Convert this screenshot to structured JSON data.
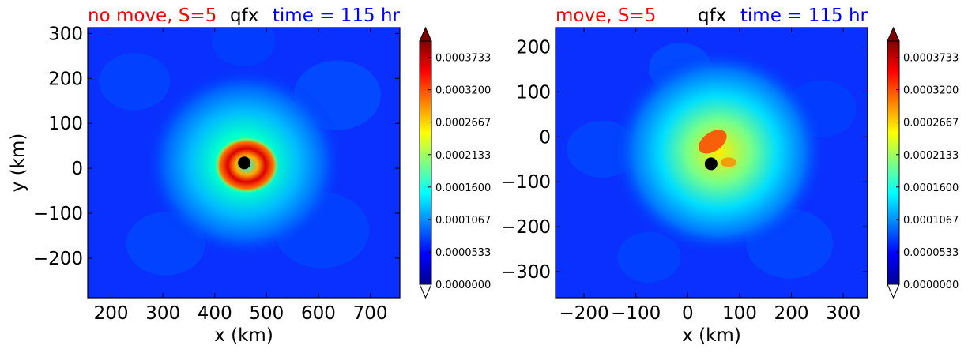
{
  "chart_data": [
    {
      "type": "heatmap",
      "title_left": "no move, S=5",
      "title_center": "qfx",
      "title_right": "time = 115 hr",
      "title_colors": {
        "left": "#ff0000",
        "center": "#000000",
        "right": "#0000ff"
      },
      "xlabel": "x (km)",
      "ylabel": "y (km)",
      "xlim": [
        155,
        757
      ],
      "ylim": [
        -288,
        313
      ],
      "xticks": [
        200,
        300,
        400,
        500,
        600,
        700
      ],
      "yticks": [
        300,
        200,
        100,
        0,
        -100,
        -200
      ],
      "xtick_labels": [
        "200",
        "300",
        "400",
        "500",
        "600",
        "700"
      ],
      "ytick_labels": [
        "300",
        "200",
        "100",
        "0",
        "−100",
        "−200"
      ],
      "center_marker": {
        "x": 457,
        "y": 12
      },
      "colorbar": {
        "min": 0.0,
        "max": 0.0004,
        "extend": "both",
        "ticks": [
          0.0,
          5.33e-05,
          0.0001067,
          0.00016,
          0.0002133,
          0.0002667,
          0.00032,
          0.0003733
        ],
        "tick_labels": [
          "0.0000000",
          "0.0000533",
          "0.0001067",
          "0.0001600",
          "0.0002133",
          "0.0002667",
          "0.0003200",
          "0.0003733"
        ],
        "colormap": "jet"
      }
    },
    {
      "type": "heatmap",
      "title_left": "move, S=5",
      "title_center": "qfx",
      "title_right": "time = 115 hr",
      "title_colors": {
        "left": "#ff0000",
        "center": "#000000",
        "right": "#0000ff"
      },
      "xlabel": "x (km)",
      "ylabel": "",
      "xlim": [
        -255,
        347
      ],
      "ylim": [
        -358,
        243
      ],
      "xticks": [
        -200,
        -100,
        0,
        100,
        200,
        300
      ],
      "yticks": [
        200,
        100,
        0,
        -100,
        -200,
        -300
      ],
      "xtick_labels": [
        "−200",
        "−100",
        "0",
        "100",
        "200",
        "300"
      ],
      "ytick_labels": [
        "200",
        "100",
        "0",
        "−100",
        "−200",
        "−300"
      ],
      "center_marker": {
        "x": 45,
        "y": -60
      },
      "colorbar": {
        "min": 0.0,
        "max": 0.0004,
        "extend": "both",
        "ticks": [
          0.0,
          5.33e-05,
          0.0001067,
          0.00016,
          0.0002133,
          0.0002667,
          0.00032,
          0.0003733
        ],
        "tick_labels": [
          "0.0000000",
          "0.0000533",
          "0.0001067",
          "0.0001600",
          "0.0002133",
          "0.0002667",
          "0.0003200",
          "0.0003733"
        ],
        "colormap": "jet"
      }
    }
  ]
}
